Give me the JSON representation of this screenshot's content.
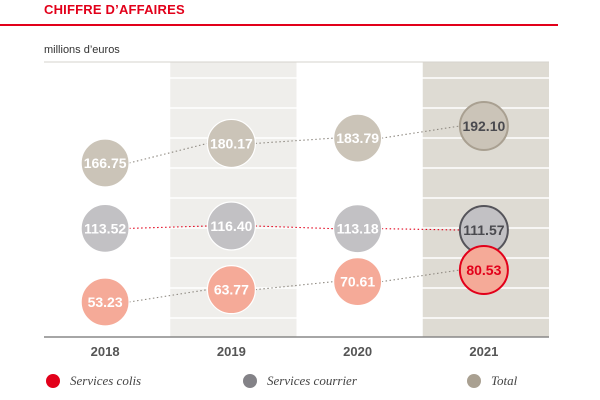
{
  "header": {
    "title": "CHIFFRE D’AFFAIRES",
    "unit": "millions d’euros"
  },
  "colors": {
    "accent": "#e2001a",
    "services_colis": "#e2001a",
    "services_colis_bubble": "#f5aa98",
    "services_courrier": "#838287",
    "services_courrier_bubble": "#c2c1c4",
    "total": "#a9a091",
    "total_bubble": "#cbc4b8"
  },
  "chart_data": {
    "type": "scatter",
    "title": "CHIFFRE D’AFFAIRES",
    "ylabel": "millions d’euros",
    "categories": [
      "2018",
      "2019",
      "2020",
      "2021"
    ],
    "highlighted_category": "2021",
    "series": [
      {
        "name": "Total",
        "values": [
          166.75,
          180.17,
          183.79,
          192.1
        ]
      },
      {
        "name": "Services courrier",
        "values": [
          113.52,
          116.4,
          113.18,
          111.57
        ]
      },
      {
        "name": "Services colis",
        "values": [
          53.23,
          63.77,
          70.61,
          80.53
        ]
      }
    ],
    "value_labels": {
      "Total": [
        "166.75",
        "180.17",
        "183.79",
        "192.10"
      ],
      "Services courrier": [
        "113.52",
        "116.40",
        "113.18",
        "111.57"
      ],
      "Services colis": [
        "53.23",
        "63.77",
        "70.61",
        "80.53"
      ]
    },
    "legend": {
      "placement": "bottom",
      "entries": [
        "Services colis",
        "Services courrier",
        "Total"
      ]
    },
    "grid": true
  }
}
